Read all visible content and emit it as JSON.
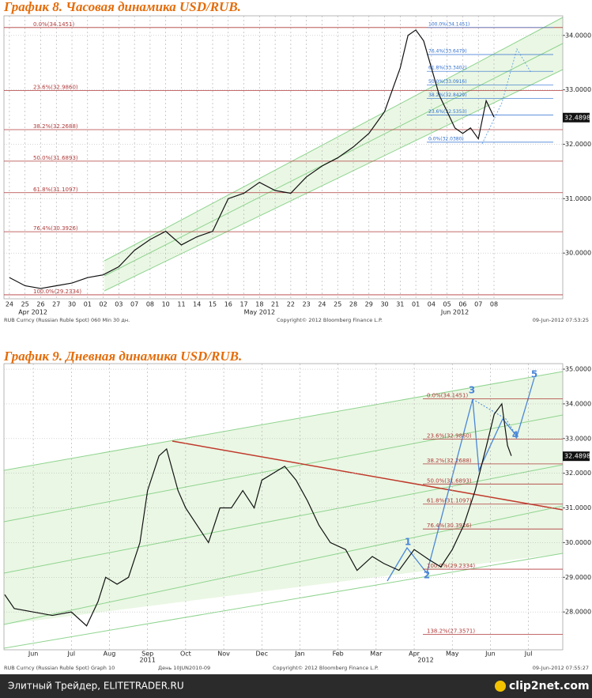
{
  "chart_data": [
    {
      "type": "line",
      "title": "График 8.   Часовая динамика USD/RUB.",
      "color": "#111111",
      "grid": true,
      "x": [
        0,
        1,
        2,
        3,
        4,
        5,
        6,
        7,
        8,
        9,
        10,
        11,
        12,
        13,
        14,
        15,
        16,
        17,
        18,
        19,
        20,
        21,
        22,
        23,
        24,
        25,
        25.5,
        26,
        26.5,
        27,
        27.5,
        28,
        28.5,
        29,
        29.5,
        30,
        30.5,
        31
      ],
      "values": [
        29.55,
        29.4,
        29.35,
        29.4,
        29.45,
        29.55,
        29.6,
        29.75,
        30.05,
        30.25,
        30.4,
        30.15,
        30.3,
        30.4,
        31.0,
        31.1,
        31.3,
        31.15,
        31.1,
        31.4,
        31.6,
        31.75,
        31.95,
        32.2,
        32.6,
        33.4,
        34.0,
        34.1,
        33.9,
        33.4,
        32.9,
        32.6,
        32.3,
        32.2,
        32.3,
        32.1,
        32.8,
        32.5
      ],
      "xlim": [
        -0.35,
        35.4
      ],
      "ylim": [
        29.16,
        34.36
      ],
      "yticks": [
        {
          "value": 30,
          "label": "30.0000"
        },
        {
          "value": 31,
          "label": "31.0000"
        },
        {
          "value": 32,
          "label": "32.0000"
        },
        {
          "value": 33,
          "label": "33.0000"
        },
        {
          "value": 34,
          "label": "34.0000"
        }
      ],
      "xticks": [
        {
          "value": 0,
          "label": "24"
        },
        {
          "value": 1,
          "label": "25"
        },
        {
          "value": 2,
          "label": "26"
        },
        {
          "value": 3,
          "label": "27"
        },
        {
          "value": 4,
          "label": "30"
        },
        {
          "value": 5,
          "label": "01"
        },
        {
          "value": 6,
          "label": "02"
        },
        {
          "value": 7,
          "label": "03"
        },
        {
          "value": 8,
          "label": "07"
        },
        {
          "value": 9,
          "label": "08"
        },
        {
          "value": 10,
          "label": "10"
        },
        {
          "value": 11,
          "label": "11"
        },
        {
          "value": 12,
          "label": "14"
        },
        {
          "value": 13,
          "label": "15"
        },
        {
          "value": 14,
          "label": "16"
        },
        {
          "value": 15,
          "label": "17"
        },
        {
          "value": 16,
          "label": "18"
        },
        {
          "value": 17,
          "label": "21"
        },
        {
          "value": 18,
          "label": "22"
        },
        {
          "value": 19,
          "label": "23"
        },
        {
          "value": 20,
          "label": "24"
        },
        {
          "value": 21,
          "label": "25"
        },
        {
          "value": 22,
          "label": "28"
        },
        {
          "value": 23,
          "label": "29"
        },
        {
          "value": 24,
          "label": "30"
        },
        {
          "value": 25,
          "label": "31"
        },
        {
          "value": 26,
          "label": "01"
        },
        {
          "value": 27,
          "label": "04"
        },
        {
          "value": 28,
          "label": "05"
        },
        {
          "value": 29,
          "label": "06"
        },
        {
          "value": 30,
          "label": "07"
        },
        {
          "value": 31,
          "label": "08"
        }
      ],
      "period_labels": [
        {
          "value": 1.5,
          "label": "Apr 2012"
        },
        {
          "value": 16,
          "label": "May 2012"
        },
        {
          "value": 28.5,
          "label": "Jun 2012"
        }
      ],
      "levels_color": "#b03a3a",
      "levels": [
        {
          "value": 34.1451,
          "label": "0.0%(34.1451)"
        },
        {
          "value": 32.986,
          "label": "23.6%(32.9860)"
        },
        {
          "value": 32.2688,
          "label": "38.2%(32.2688)"
        },
        {
          "value": 31.6893,
          "label": "50.0%(31.6893)"
        },
        {
          "value": 31.1097,
          "label": "61.8%(31.1097)"
        },
        {
          "value": 30.3926,
          "label": "76.4%(30.3926)"
        },
        {
          "value": 29.2334,
          "label": "100.0%(29.2334)"
        }
      ],
      "levels2_color": "#2f6fd0",
      "levels2": [
        {
          "value": 34.1451,
          "label": "100.0%(34.1451)"
        },
        {
          "value": 33.6479,
          "label": "76.4%(33.6479)"
        },
        {
          "value": 33.3402,
          "label": "61.8%(33.3402)"
        },
        {
          "value": 33.0916,
          "label": "50.0%(33.0916)"
        },
        {
          "value": 32.8429,
          "label": "38.2%(32.8429)"
        },
        {
          "value": 32.5353,
          "label": "23.6%(32.5353)"
        },
        {
          "value": 32.038,
          "label": "0.0%(32.0380)"
        }
      ],
      "last_price": 32.4898,
      "footer": [
        "RUB Curncy (Russian Ruble Spot) 060 Min 30 дн.",
        "Copyright© 2012 Bloomberg Finance L.P.",
        "09-Jun-2012 07:53:25"
      ]
    },
    {
      "type": "line",
      "title": "График 9.   Дневная динамика USD/RUB.",
      "color": "#111111",
      "grid": true,
      "x": [
        -0.75,
        -0.5,
        0,
        0.5,
        1,
        1.4,
        1.7,
        1.9,
        2.2,
        2.5,
        2.8,
        3.0,
        3.3,
        3.5,
        3.8,
        4.0,
        4.3,
        4.6,
        4.9,
        5.2,
        5.5,
        5.8,
        6.0,
        6.3,
        6.6,
        6.9,
        7.2,
        7.5,
        7.8,
        8.2,
        8.5,
        8.9,
        9.2,
        9.6,
        10.0,
        10.4,
        10.7,
        11.0,
        11.3,
        11.6,
        11.9,
        12.1,
        12.3,
        12.45,
        12.55
      ],
      "values": [
        28.5,
        28.1,
        28.0,
        27.9,
        28.0,
        27.6,
        28.3,
        29.0,
        28.8,
        29.0,
        30.0,
        31.5,
        32.5,
        32.7,
        31.5,
        31.0,
        30.5,
        30.0,
        31.0,
        31.0,
        31.5,
        31.0,
        31.8,
        32.0,
        32.2,
        31.8,
        31.2,
        30.5,
        30.0,
        29.8,
        29.2,
        29.6,
        29.4,
        29.2,
        29.8,
        29.5,
        29.3,
        29.8,
        30.5,
        31.5,
        32.8,
        33.7,
        34.0,
        32.8,
        32.5
      ],
      "xlim": [
        -0.77,
        13.9
      ],
      "ylim": [
        26.91,
        35.16
      ],
      "yticks": [
        {
          "value": 28,
          "label": "28.0000"
        },
        {
          "value": 29,
          "label": "29.0000"
        },
        {
          "value": 30,
          "label": "30.0000"
        },
        {
          "value": 31,
          "label": "31.0000"
        },
        {
          "value": 32,
          "label": "32.0000"
        },
        {
          "value": 33,
          "label": "33.0000"
        },
        {
          "value": 34,
          "label": "34.0000"
        },
        {
          "value": 35,
          "label": "35.0000"
        }
      ],
      "xticks": [
        {
          "value": 0,
          "label": "Jun"
        },
        {
          "value": 1,
          "label": "Jul"
        },
        {
          "value": 2,
          "label": "Aug"
        },
        {
          "value": 3,
          "label": "Sep"
        },
        {
          "value": 4,
          "label": "Oct"
        },
        {
          "value": 5,
          "label": "Nov"
        },
        {
          "value": 6,
          "label": "Dec"
        },
        {
          "value": 7,
          "label": "Jan"
        },
        {
          "value": 8,
          "label": "Feb"
        },
        {
          "value": 9,
          "label": "Mar"
        },
        {
          "value": 10,
          "label": "Apr"
        },
        {
          "value": 11,
          "label": "May"
        },
        {
          "value": 12,
          "label": "Jun"
        },
        {
          "value": 13,
          "label": "Jul"
        }
      ],
      "period_labels": [
        {
          "value": 3,
          "label": "2011"
        },
        {
          "value": 10.3,
          "label": "2012"
        }
      ],
      "levels_color": "#b03a3a",
      "levels": [
        {
          "value": 34.1451,
          "label": "0.0%(34.1451)"
        },
        {
          "value": 32.986,
          "label": "23.6%(32.9860)"
        },
        {
          "value": 32.2688,
          "label": "38.2%(32.2688)"
        },
        {
          "value": 31.6893,
          "label": "50.0%(31.6893)"
        },
        {
          "value": 31.1097,
          "label": "61.8%(31.1097)"
        },
        {
          "value": 30.3926,
          "label": "76.4%(30.3926)"
        },
        {
          "value": 29.2334,
          "label": "100.0%(29.2334)"
        },
        {
          "value": 27.3571,
          "label": "138.2%(27.3571)"
        }
      ],
      "last_price": 32.4898,
      "wave_labels": [
        "1",
        "2",
        "3",
        "4",
        "5"
      ],
      "footer": [
        "RUB Curncy (Russian Ruble Spot) Graph 10",
        "День 10JUN2010-09",
        "Copyright© 2012 Bloomberg Finance L.P.",
        "09-Jun-2012 07:55:27"
      ]
    }
  ],
  "footer_bar": {
    "left": "Элитный Трейдер, ELITETRADER.RU",
    "right": "clip2net.com"
  }
}
